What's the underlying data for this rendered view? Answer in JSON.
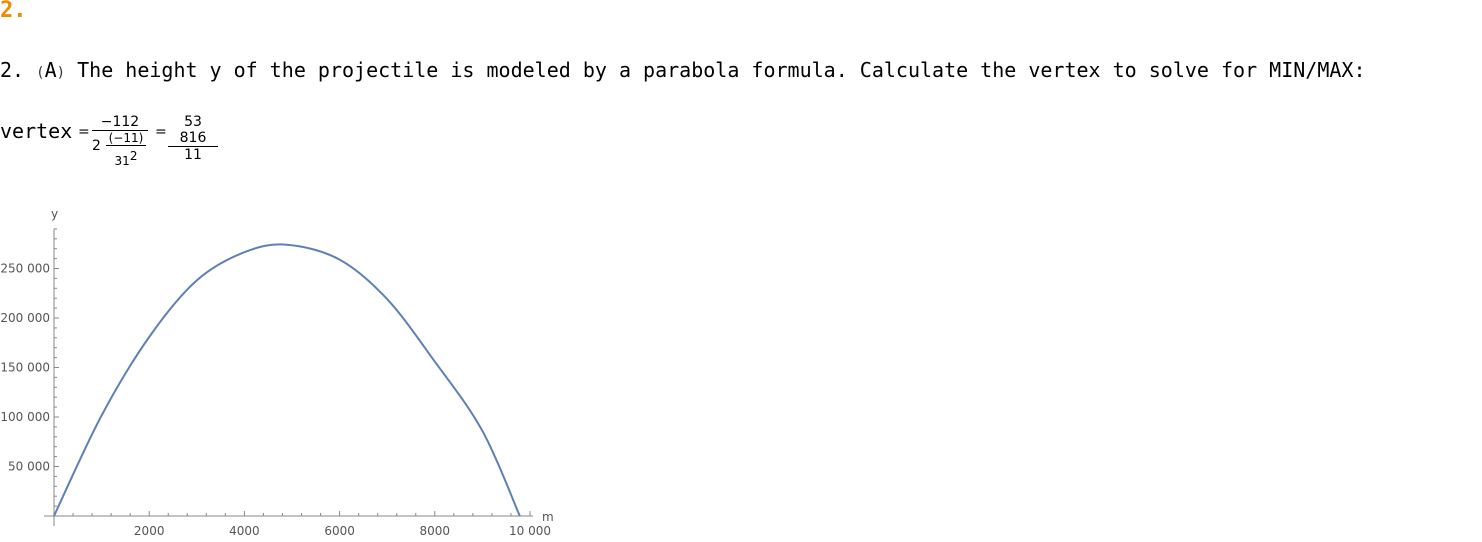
{
  "heading": "2.",
  "problem": {
    "number": "2.",
    "letter": "A",
    "text": "The height y of the projectile is modeled by a parabola formula. Calculate the vertex to solve for MIN/MAX:"
  },
  "vertex": {
    "label": "vertex",
    "equals1": "=",
    "numerator": "−112",
    "coef": "2",
    "inner_num": "(−11)",
    "inner_den_base": "31",
    "inner_den_exp": "2",
    "equals2": "=",
    "result_num": "53 816",
    "result_den": "11"
  },
  "chart_data": {
    "type": "line",
    "xlabel": "m",
    "ylabel": "y",
    "xlim": [
      0,
      10000
    ],
    "ylim": [
      0,
      290000
    ],
    "x_ticks": [
      2000,
      4000,
      6000,
      8000,
      10000
    ],
    "x_tick_labels": [
      "2000",
      "4000",
      "6000",
      "8000",
      "10 000"
    ],
    "y_ticks": [
      50000,
      100000,
      150000,
      200000,
      250000
    ],
    "y_tick_labels": [
      "50 000",
      "100 000",
      "150 000",
      "200 000",
      "250 000"
    ],
    "series": [
      {
        "color": "#5e81b5",
        "x": [
          0,
          1000,
          2000,
          3000,
          4000,
          4893,
          6000,
          7000,
          8000,
          9000,
          9786
        ],
        "y": [
          0,
          101520,
          180850,
          238000,
          266500,
          274000,
          259000,
          219000,
          156000,
          86000,
          0
        ]
      }
    ]
  }
}
